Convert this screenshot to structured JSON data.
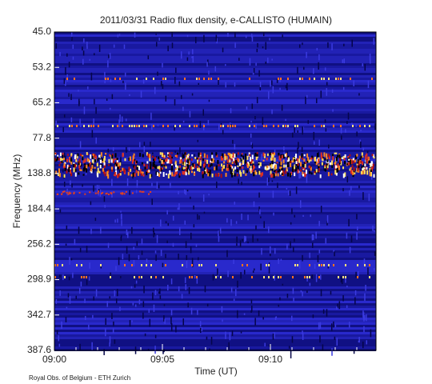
{
  "chart_data": {
    "type": "spectrogram",
    "title": "2011/03/31  Radio flux density, e-CALLISTO (HUMAIN)",
    "x_label": "Time (UT)",
    "y_label": "Frequency (MHz)",
    "xticks": [
      "09:00",
      "09:05",
      "09:10"
    ],
    "y_categories": [
      "45.0",
      "53.2",
      "65.2",
      "77.8",
      "138.8",
      "184.4",
      "256.2",
      "298.9",
      "342.7",
      "387.6"
    ],
    "footer": "Royal Obs. of Belgium - ETH Zurich"
  }
}
